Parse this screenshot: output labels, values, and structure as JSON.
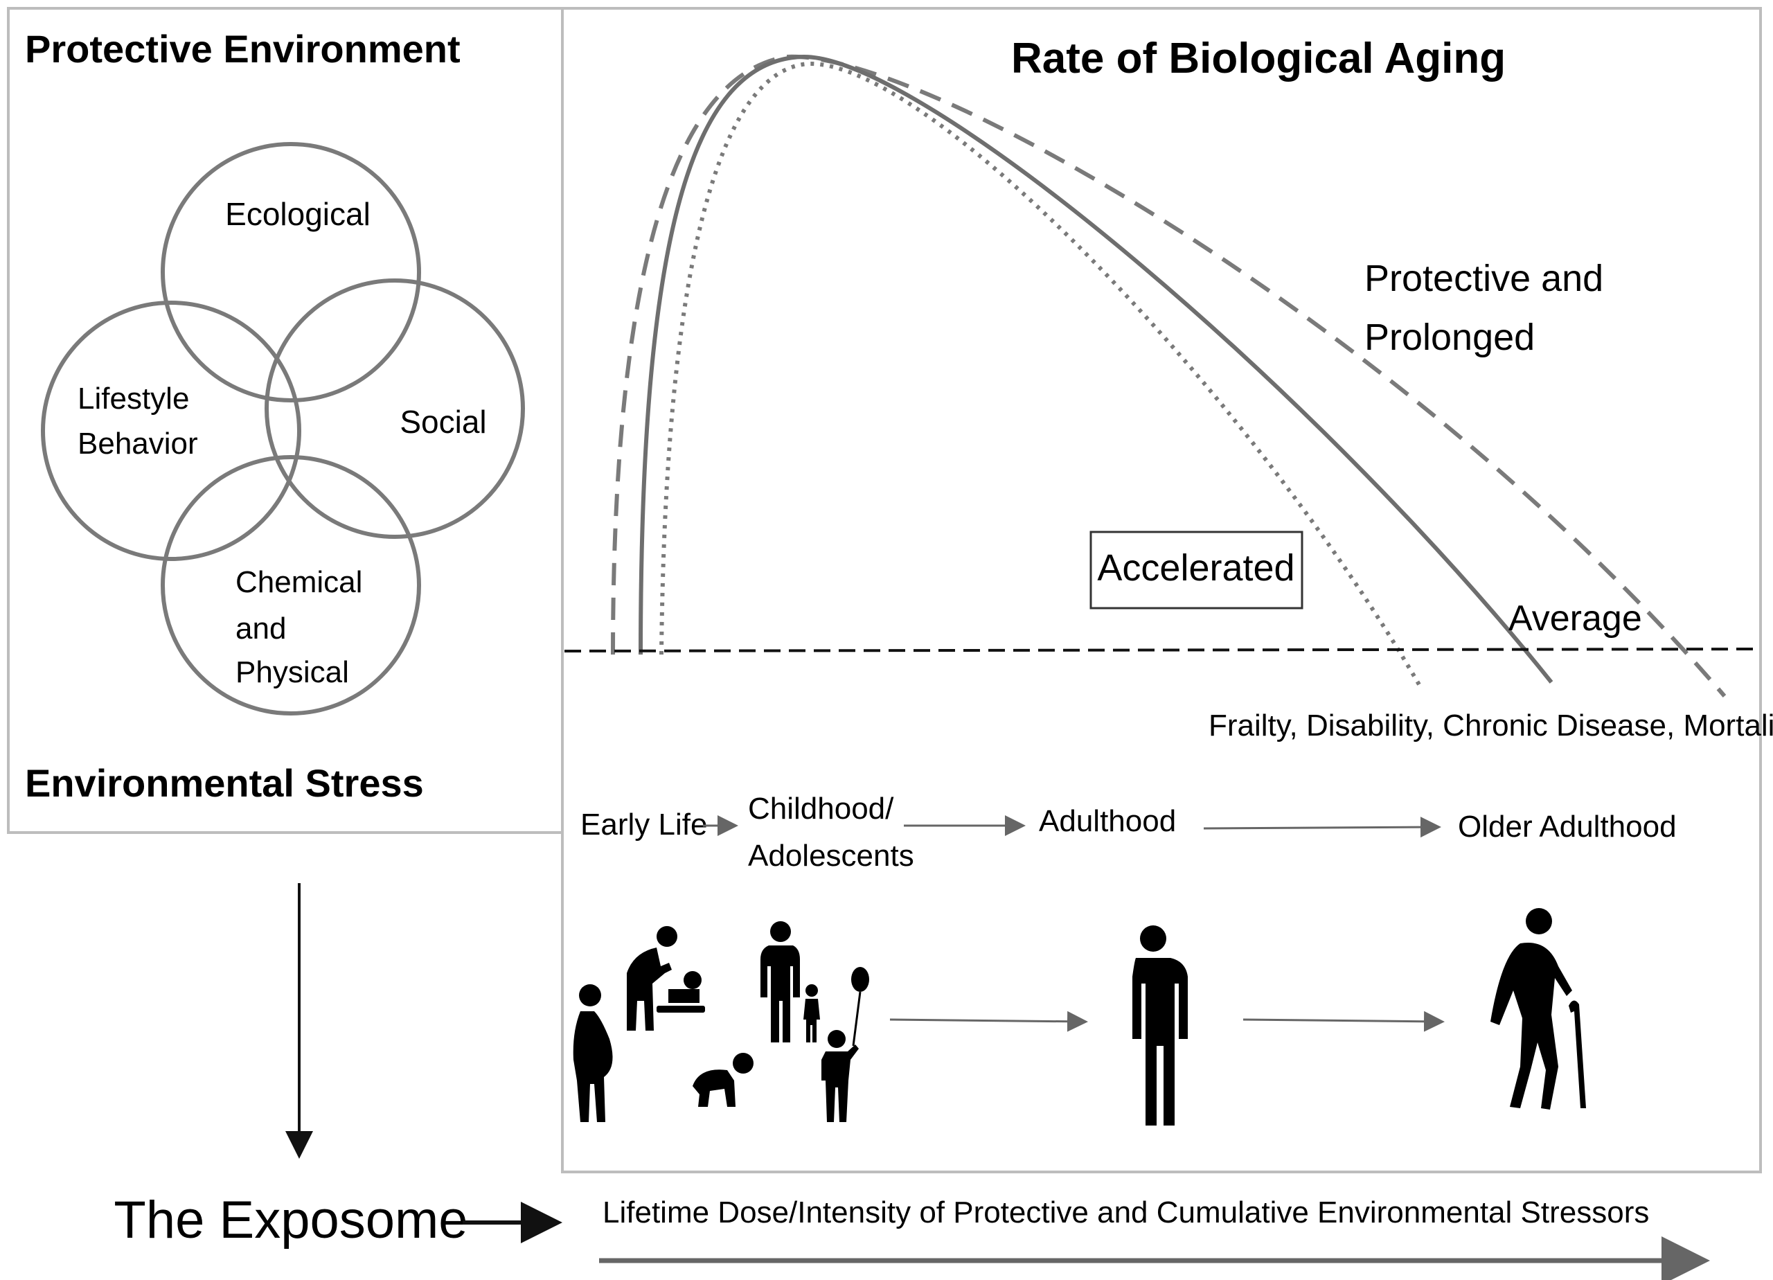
{
  "left_panel": {
    "top_label": "Protective Environment",
    "bottom_label": "Environmental Stress",
    "circles": {
      "ecological": "Ecological",
      "lifestyle_line1": "Lifestyle",
      "lifestyle_line2": "Behavior",
      "social": "Social",
      "chemical_line1": "Chemical",
      "chemical_line2": "and",
      "chemical_line3": "Physical"
    }
  },
  "right_panel": {
    "title": "Rate of Biological Aging",
    "label_protective_line1": "Protective and",
    "label_protective_line2": "Prolonged",
    "label_accelerated": "Accelerated",
    "label_average": "Average",
    "threshold_label": "Frailty, Disability, Chronic Disease, Mortality",
    "stages": {
      "early_life": "Early Life",
      "childhood_line1": "Childhood/",
      "childhood_line2": "Adolescents",
      "adulthood": "Adulthood",
      "older_adulthood": "Older Adulthood"
    }
  },
  "bottom": {
    "exposome": "The Exposome",
    "lifetime_dose": "Lifetime Dose/Intensity of Protective and Cumulative Environmental Stressors"
  },
  "colors": {
    "curve": "#6e6e6e",
    "panel_border": "#bdbdbd",
    "text": "#111111",
    "icon": "#000000"
  }
}
